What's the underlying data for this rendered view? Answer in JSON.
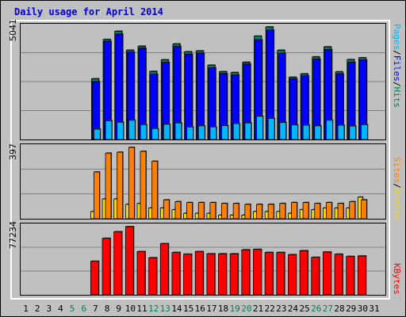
{
  "title": "Daily usage for April 2014",
  "colors": {
    "background": "#c0c0c0",
    "frame": "#ffffff",
    "hits": "#00805c",
    "files": "#0000ff",
    "pages": "#00b7ff",
    "visits": "#f7d708",
    "sites": "#ff8000",
    "kbytes": "#ff0000",
    "weekend": "#00805c"
  },
  "legends": {
    "top": [
      {
        "text": "Pages",
        "color": "#00b7ff"
      },
      {
        "text": "/",
        "color": "#000000"
      },
      {
        "text": "Files",
        "color": "#0000ff"
      },
      {
        "text": "/",
        "color": "#000000"
      },
      {
        "text": "Hits",
        "color": "#00805c"
      }
    ],
    "middle": [
      {
        "text": "Sites",
        "color": "#ff8000"
      },
      {
        "text": "/",
        "color": "#000000"
      },
      {
        "text": "Visits",
        "color": "#f7d708"
      }
    ],
    "bottom": [
      {
        "text": "KBytes",
        "color": "#ff0000"
      }
    ]
  },
  "chart_data": {
    "type": "bar",
    "title": "Daily usage for April 2014",
    "categories": [
      "1",
      "2",
      "3",
      "4",
      "5",
      "6",
      "7",
      "8",
      "9",
      "10",
      "11",
      "12",
      "13",
      "14",
      "15",
      "16",
      "17",
      "18",
      "19",
      "20",
      "21",
      "22",
      "23",
      "24",
      "25",
      "26",
      "27",
      "28",
      "29",
      "30",
      "31"
    ],
    "weekend_days": [
      "5",
      "6",
      "12",
      "13",
      "19",
      "20",
      "26",
      "27"
    ],
    "panels": [
      {
        "name": "hits-files-pages",
        "ymax": 5041,
        "ymax_label": "5041",
        "series": [
          {
            "name": "Hits",
            "values": [
              0,
              0,
              0,
              0,
              0,
              0,
              2720,
              4480,
              4850,
              4000,
              4180,
              3050,
              3570,
              4280,
              3930,
              3970,
              3330,
              3040,
              3000,
              3460,
              4630,
              5041,
              4000,
              2790,
              2940,
              3700,
              4150,
              3030,
              3580,
              3660,
              0
            ]
          },
          {
            "name": "Files",
            "values": [
              0,
              0,
              0,
              0,
              0,
              0,
              2590,
              4400,
              4720,
              3920,
              4090,
              2920,
              3460,
              4170,
              3820,
              3870,
              3210,
              2950,
              2890,
              3380,
              4470,
              4900,
              3860,
              2720,
              2850,
              3600,
              4030,
              2940,
              3460,
              3560,
              0
            ]
          },
          {
            "name": "Pages",
            "values": [
              0,
              0,
              0,
              0,
              0,
              0,
              460,
              840,
              770,
              860,
              660,
              490,
              680,
              740,
              560,
              610,
              560,
              620,
              710,
              740,
              1040,
              940,
              760,
              650,
              640,
              610,
              860,
              640,
              600,
              660,
              0
            ]
          }
        ]
      },
      {
        "name": "sites-visits",
        "ymax": 397,
        "ymax_label": "397",
        "series": [
          {
            "name": "Visits",
            "values": [
              0,
              0,
              0,
              0,
              0,
              0,
              40,
              110,
              110,
              80,
              85,
              60,
              60,
              50,
              30,
              30,
              30,
              20,
              20,
              20,
              40,
              40,
              40,
              30,
              50,
              50,
              60,
              60,
              60,
              120,
              0
            ]
          },
          {
            "name": "Sites",
            "values": [
              0,
              0,
              0,
              0,
              0,
              0,
              260,
              365,
              370,
              397,
              375,
              320,
              105,
              95,
              90,
              90,
              90,
              85,
              85,
              80,
              80,
              80,
              85,
              90,
              90,
              85,
              90,
              85,
              95,
              105,
              0
            ]
          }
        ]
      },
      {
        "name": "kbytes",
        "ymax": 77234,
        "ymax_label": "77234",
        "series": [
          {
            "name": "KBytes",
            "values": [
              0,
              0,
              0,
              0,
              0,
              0,
              38000,
              64000,
              71500,
              77234,
              49000,
              42000,
              58000,
              48000,
              46000,
              49000,
              46500,
              46500,
              46500,
              51000,
              51500,
              48000,
              48000,
              45500,
              50000,
              42500,
              48500,
              46000,
              43500,
              44000,
              0
            ]
          }
        ]
      }
    ]
  }
}
